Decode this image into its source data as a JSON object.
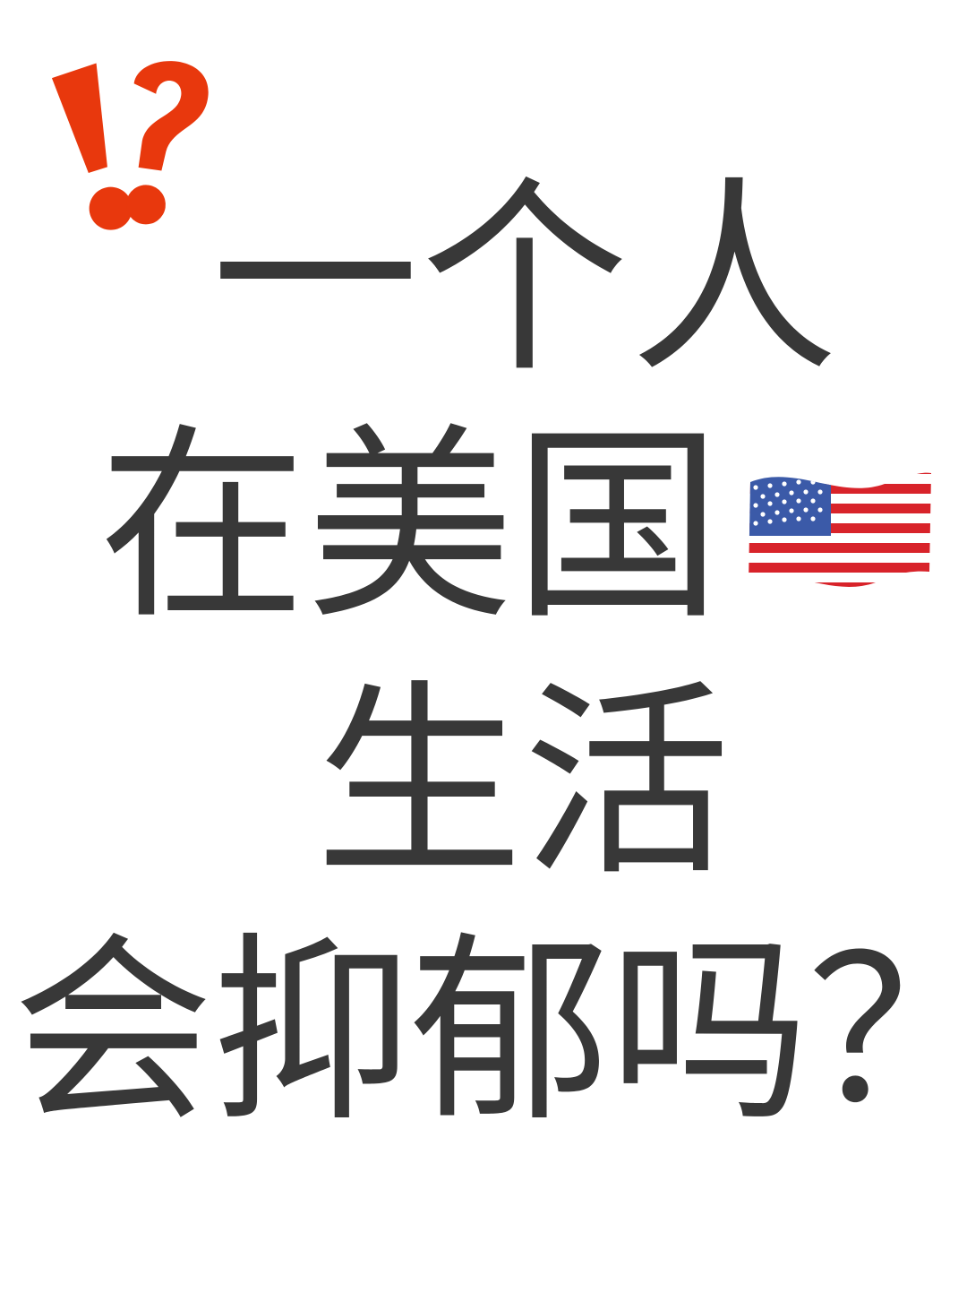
{
  "headline": {
    "line1": "一个人",
    "line2": "在美国",
    "line3": "生活",
    "line4": "会抑郁吗？"
  },
  "decorations": {
    "interrobang_icon": "exclamation-question-mark-icon",
    "flag_icon": "us-flag-icon"
  },
  "colors": {
    "text": "#383838",
    "accent": "#e8380d",
    "background": "#ffffff",
    "flag_red": "#d8232a",
    "flag_blue": "#3b5aa8"
  }
}
